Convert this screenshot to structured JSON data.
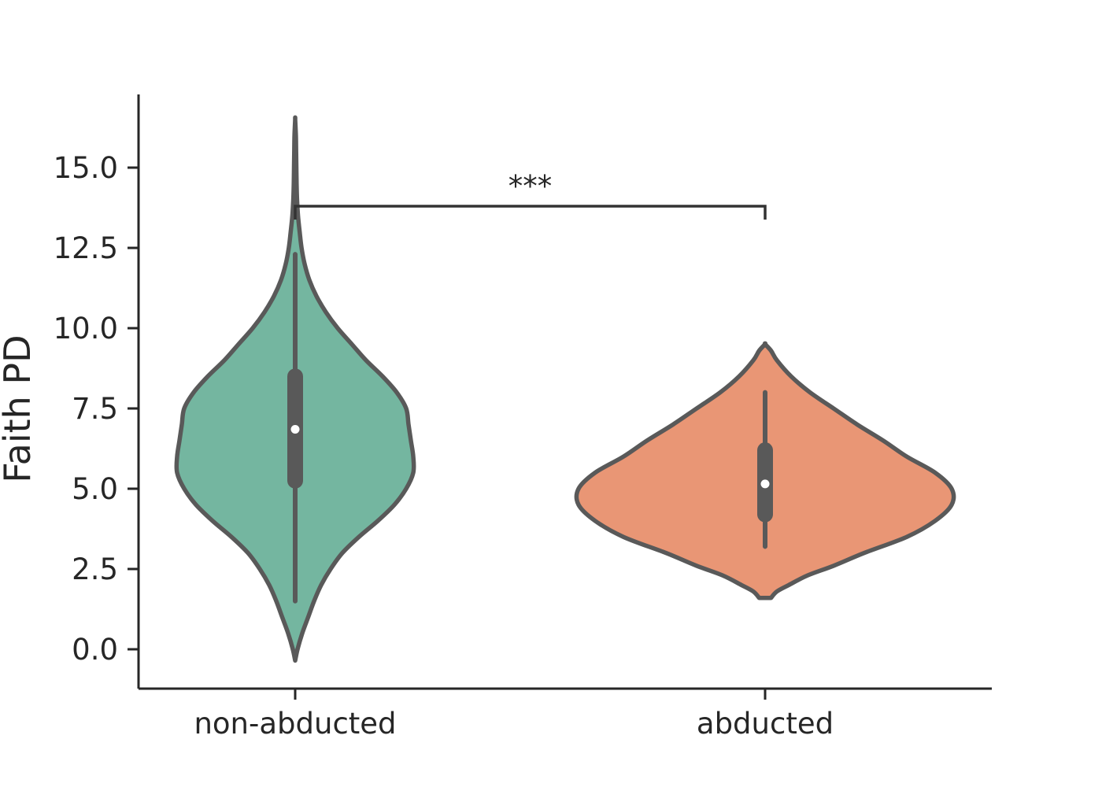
{
  "chart_data": {
    "type": "violin",
    "title": "",
    "xlabel": "",
    "ylabel": "Faith PD",
    "ylim": [
      -1.2,
      17.3
    ],
    "yticks": [
      0.0,
      2.5,
      5.0,
      7.5,
      10.0,
      12.5,
      15.0
    ],
    "ytick_labels": [
      "0.0",
      "2.5",
      "5.0",
      "7.5",
      "10.0",
      "12.5",
      "15.0"
    ],
    "categories": [
      "non-abducted",
      "abducted"
    ],
    "colors": [
      "#74b6a0",
      "#e99675"
    ],
    "outline_color": "#595959",
    "grid": false,
    "legend": false,
    "series": [
      {
        "category": "non-abducted",
        "color": "#74b6a0",
        "median": 6.85,
        "q1": 5.25,
        "q3": 8.5,
        "whisker_low": 1.5,
        "whisker_high": 12.3,
        "density_max_halfwidth": 0.5,
        "density_profile": [
          {
            "y": -0.35,
            "w": 0.0
          },
          {
            "y": 0.0,
            "w": 0.01
          },
          {
            "y": 0.5,
            "w": 0.03
          },
          {
            "y": 1.0,
            "w": 0.055
          },
          {
            "y": 1.5,
            "w": 0.08
          },
          {
            "y": 2.0,
            "w": 0.11
          },
          {
            "y": 2.5,
            "w": 0.15
          },
          {
            "y": 3.0,
            "w": 0.2
          },
          {
            "y": 3.5,
            "w": 0.27
          },
          {
            "y": 4.0,
            "w": 0.35
          },
          {
            "y": 4.5,
            "w": 0.42
          },
          {
            "y": 5.0,
            "w": 0.47
          },
          {
            "y": 5.5,
            "w": 0.5
          },
          {
            "y": 6.0,
            "w": 0.5
          },
          {
            "y": 6.5,
            "w": 0.49
          },
          {
            "y": 7.0,
            "w": 0.48
          },
          {
            "y": 7.5,
            "w": 0.47
          },
          {
            "y": 8.0,
            "w": 0.43
          },
          {
            "y": 8.5,
            "w": 0.37
          },
          {
            "y": 9.0,
            "w": 0.3
          },
          {
            "y": 9.5,
            "w": 0.24
          },
          {
            "y": 10.0,
            "w": 0.18
          },
          {
            "y": 10.5,
            "w": 0.13
          },
          {
            "y": 11.0,
            "w": 0.09
          },
          {
            "y": 11.5,
            "w": 0.06
          },
          {
            "y": 12.0,
            "w": 0.04
          },
          {
            "y": 12.5,
            "w": 0.027
          },
          {
            "y": 13.0,
            "w": 0.019
          },
          {
            "y": 13.5,
            "w": 0.012
          },
          {
            "y": 14.0,
            "w": 0.008
          },
          {
            "y": 14.5,
            "w": 0.006
          },
          {
            "y": 15.0,
            "w": 0.005
          },
          {
            "y": 15.5,
            "w": 0.004
          },
          {
            "y": 16.0,
            "w": 0.003
          },
          {
            "y": 16.5,
            "w": 0.0
          }
        ]
      },
      {
        "category": "abducted",
        "color": "#e99675",
        "median": 5.15,
        "q1": 4.2,
        "q3": 6.2,
        "whisker_low": 3.2,
        "whisker_high": 8.0,
        "density_max_halfwidth": 0.8,
        "density_profile": [
          {
            "y": 1.6,
            "w": 0.025
          },
          {
            "y": 1.8,
            "w": 0.05
          },
          {
            "y": 2.0,
            "w": 0.1
          },
          {
            "y": 2.3,
            "w": 0.18
          },
          {
            "y": 2.6,
            "w": 0.29
          },
          {
            "y": 3.0,
            "w": 0.42
          },
          {
            "y": 3.5,
            "w": 0.6
          },
          {
            "y": 4.0,
            "w": 0.72
          },
          {
            "y": 4.5,
            "w": 0.79
          },
          {
            "y": 5.0,
            "w": 0.79
          },
          {
            "y": 5.5,
            "w": 0.72
          },
          {
            "y": 6.0,
            "w": 0.6
          },
          {
            "y": 6.5,
            "w": 0.5
          },
          {
            "y": 7.0,
            "w": 0.39
          },
          {
            "y": 7.5,
            "w": 0.29
          },
          {
            "y": 8.0,
            "w": 0.19
          },
          {
            "y": 8.5,
            "w": 0.11
          },
          {
            "y": 9.0,
            "w": 0.05
          },
          {
            "y": 9.3,
            "w": 0.025
          },
          {
            "y": 9.5,
            "w": 0.0
          }
        ]
      }
    ],
    "annotations": [
      {
        "type": "significance",
        "between": [
          "non-abducted",
          "abducted"
        ],
        "label": "***",
        "y": 13.8
      }
    ]
  }
}
